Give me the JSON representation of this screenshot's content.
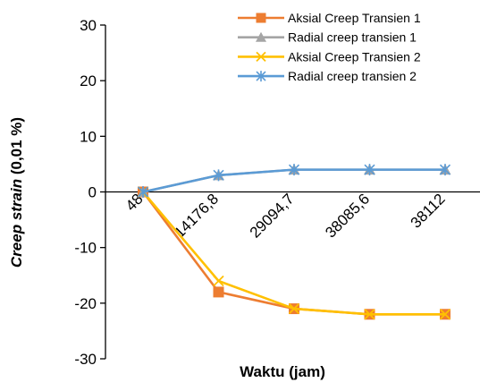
{
  "chart_data": {
    "type": "line",
    "categories": [
      "48",
      "14176,8",
      "29094,7",
      "38085,6",
      "38112"
    ],
    "xlabel": "Waktu (jam)",
    "ylabel_italic": "Creep  strain",
    "ylabel_rest": " (0,01 %)",
    "ylim": [
      -30,
      30
    ],
    "yticks": [
      "30",
      "20",
      "10",
      "0",
      "-10",
      "-20",
      "-30"
    ],
    "ytick_values": [
      30,
      20,
      10,
      0,
      -10,
      -20,
      -30
    ],
    "grid": false,
    "legend_position": "top-right",
    "series": [
      {
        "name": "Aksial Creep Transien 1",
        "marker": "square",
        "color": "#ED7D31",
        "values": [
          0,
          -18,
          -21,
          -22,
          -22
        ]
      },
      {
        "name": "Radial creep transien 1",
        "marker": "triangle",
        "color": "#A5A5A5",
        "values": [
          0,
          3,
          4,
          4,
          4
        ]
      },
      {
        "name": "Aksial Creep Transien 2",
        "marker": "x",
        "color": "#FFC000",
        "values": [
          0,
          -16,
          -21,
          -22,
          -22
        ]
      },
      {
        "name": "Radial creep transien 2",
        "marker": "star",
        "color": "#5B9BD5",
        "values": [
          0,
          3,
          4,
          4,
          4
        ]
      }
    ]
  }
}
